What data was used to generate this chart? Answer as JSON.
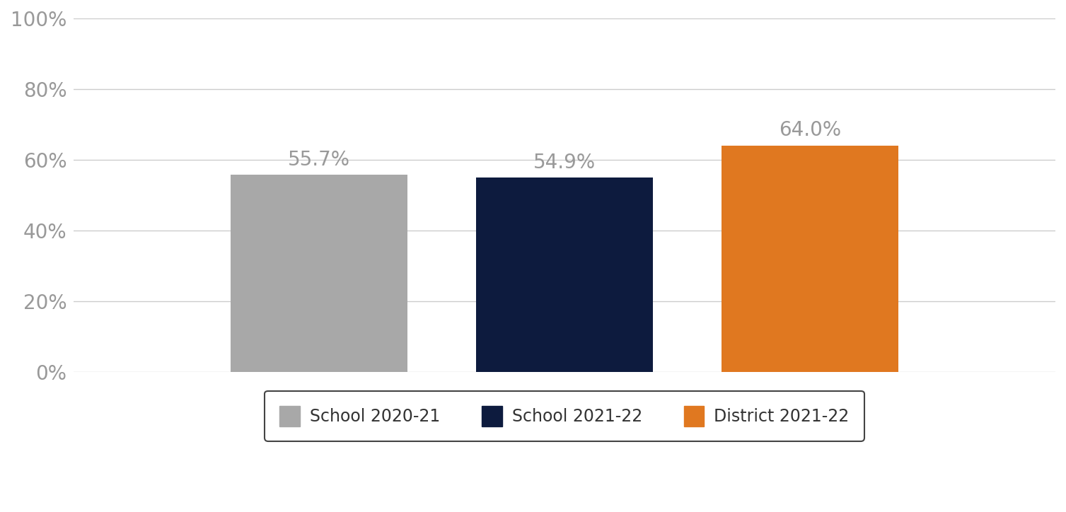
{
  "categories": [
    "School 2020-21",
    "School 2021-22",
    "District 2021-22"
  ],
  "values": [
    55.7,
    54.9,
    64.0
  ],
  "bar_colors": [
    "#a8a8a8",
    "#0d1b3e",
    "#e07820"
  ],
  "labels": [
    "55.7%",
    "54.9%",
    "64.0%"
  ],
  "ylim": [
    0,
    100
  ],
  "yticks": [
    0,
    20,
    40,
    60,
    80,
    100
  ],
  "ytick_labels": [
    "0%",
    "20%",
    "40%",
    "60%",
    "80%",
    "100%"
  ],
  "background_color": "#ffffff",
  "plot_bg_color": "#ffffff",
  "label_color": "#999999",
  "tick_color": "#999999",
  "grid_color": "#cccccc",
  "legend_entries": [
    "School 2020-21",
    "School 2021-22",
    "District 2021-22"
  ],
  "legend_colors": [
    "#a8a8a8",
    "#0d1b3e",
    "#e07820"
  ],
  "bar_width": 0.18,
  "label_fontsize": 20,
  "tick_fontsize": 20,
  "legend_fontsize": 17,
  "x_positions": [
    0.25,
    0.5,
    0.75
  ],
  "xlim": [
    0.0,
    1.0
  ]
}
